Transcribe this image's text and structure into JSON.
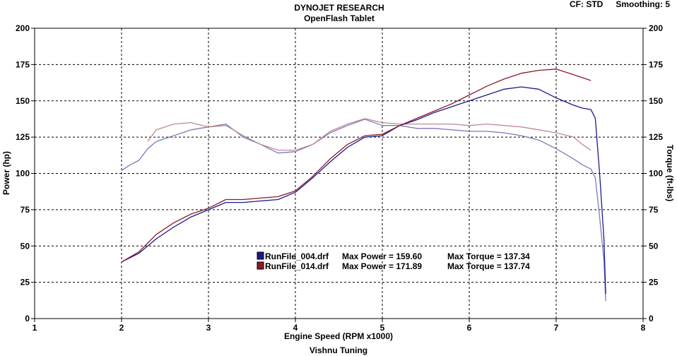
{
  "header": {
    "title": "DYNOJET RESEARCH",
    "subtitle": "OpenFlash Tablet",
    "cf_label": "CF: STD",
    "smoothing_label": "Smoothing: 5"
  },
  "footer": {
    "credit": "Vishnu Tuning"
  },
  "legend": {
    "entries": [
      {
        "file": "RunFile_004.drf",
        "power_text": "Max Power = 159.60",
        "torque_text": "Max Torque = 137.34",
        "color": "#1a1a8c"
      },
      {
        "file": "RunFile_014.drf",
        "power_text": "Max Power = 171.89",
        "torque_text": "Max Torque = 137.74",
        "color": "#8b1a2a"
      }
    ]
  },
  "chart_data": {
    "type": "line",
    "xlabel": "Engine Speed (RPM x1000)",
    "ylabel": "Power (hp)",
    "y2label": "Torque (ft-lbs)",
    "xlim": [
      1,
      8
    ],
    "ylim": [
      0,
      200
    ],
    "y2lim": [
      0,
      200
    ],
    "xticks": [
      1,
      2,
      3,
      4,
      5,
      6,
      7,
      8
    ],
    "yticks": [
      0,
      25,
      50,
      75,
      100,
      125,
      150,
      175,
      200
    ],
    "y2ticks": [
      0,
      25,
      50,
      75,
      100,
      125,
      150,
      175,
      200
    ],
    "grid": true,
    "legend_position": "bottom-center",
    "series": [
      {
        "name": "RunFile_004.drf",
        "kind": "power",
        "axis": "left",
        "color": "#1a1a8c",
        "x": [
          2.0,
          2.2,
          2.4,
          2.6,
          2.8,
          3.0,
          3.2,
          3.4,
          3.6,
          3.8,
          4.0,
          4.2,
          4.4,
          4.6,
          4.8,
          5.0,
          5.2,
          5.4,
          5.6,
          5.8,
          6.0,
          6.2,
          6.4,
          6.6,
          6.8,
          7.0,
          7.2,
          7.3,
          7.4,
          7.45,
          7.5,
          7.55,
          7.57
        ],
        "y": [
          39,
          45,
          55,
          63,
          70,
          75,
          80,
          80,
          81,
          82,
          87,
          97,
          108,
          118,
          125,
          126,
          133,
          137,
          142,
          146,
          150,
          154,
          158,
          159.6,
          158,
          152,
          147,
          145,
          144,
          138,
          100,
          55,
          17
        ]
      },
      {
        "name": "RunFile_014.drf",
        "kind": "power",
        "axis": "left",
        "color": "#8b1a2a",
        "x": [
          2.0,
          2.2,
          2.4,
          2.6,
          2.8,
          3.0,
          3.2,
          3.4,
          3.6,
          3.8,
          4.0,
          4.2,
          4.4,
          4.6,
          4.8,
          5.0,
          5.2,
          5.4,
          5.6,
          5.8,
          6.0,
          6.2,
          6.4,
          6.6,
          6.8,
          7.0,
          7.1,
          7.2,
          7.3,
          7.4
        ],
        "y": [
          39,
          46,
          58,
          66,
          72,
          76,
          82,
          82,
          83,
          84,
          88,
          98,
          110,
          120,
          126,
          127,
          133,
          138,
          143,
          148,
          154,
          160,
          165,
          169,
          171,
          171.89,
          170,
          168,
          166,
          164
        ]
      },
      {
        "name": "RunFile_004.drf",
        "kind": "torque",
        "axis": "right",
        "color": "#7a7ab8",
        "x": [
          2.0,
          2.1,
          2.2,
          2.3,
          2.4,
          2.6,
          2.8,
          3.0,
          3.2,
          3.4,
          3.6,
          3.8,
          4.0,
          4.2,
          4.4,
          4.6,
          4.8,
          5.0,
          5.2,
          5.4,
          5.6,
          5.8,
          6.0,
          6.2,
          6.4,
          6.6,
          6.8,
          7.0,
          7.2,
          7.3,
          7.4,
          7.45,
          7.5,
          7.55,
          7.57
        ],
        "y": [
          102,
          106,
          109,
          117,
          122,
          126,
          130,
          132,
          134,
          125,
          120,
          114,
          115,
          120,
          128,
          133,
          137.34,
          133,
          133,
          131,
          131,
          130,
          129,
          129,
          128,
          126,
          123,
          117,
          110,
          106,
          103,
          97,
          70,
          40,
          12
        ]
      },
      {
        "name": "RunFile_014.drf",
        "kind": "torque",
        "axis": "right",
        "color": "#c08a94",
        "x": [
          2.3,
          2.4,
          2.6,
          2.8,
          3.0,
          3.2,
          3.4,
          3.6,
          3.8,
          4.0,
          4.2,
          4.4,
          4.6,
          4.8,
          5.0,
          5.2,
          5.4,
          5.6,
          5.8,
          6.0,
          6.2,
          6.4,
          6.6,
          6.8,
          7.0,
          7.2,
          7.3,
          7.4
        ],
        "y": [
          122,
          130,
          134,
          135,
          132,
          133,
          126,
          120,
          116,
          116,
          120,
          129,
          134,
          137.74,
          135,
          134,
          134,
          134,
          134,
          133,
          134,
          133,
          132,
          130,
          128,
          125,
          120,
          116
        ]
      }
    ]
  }
}
